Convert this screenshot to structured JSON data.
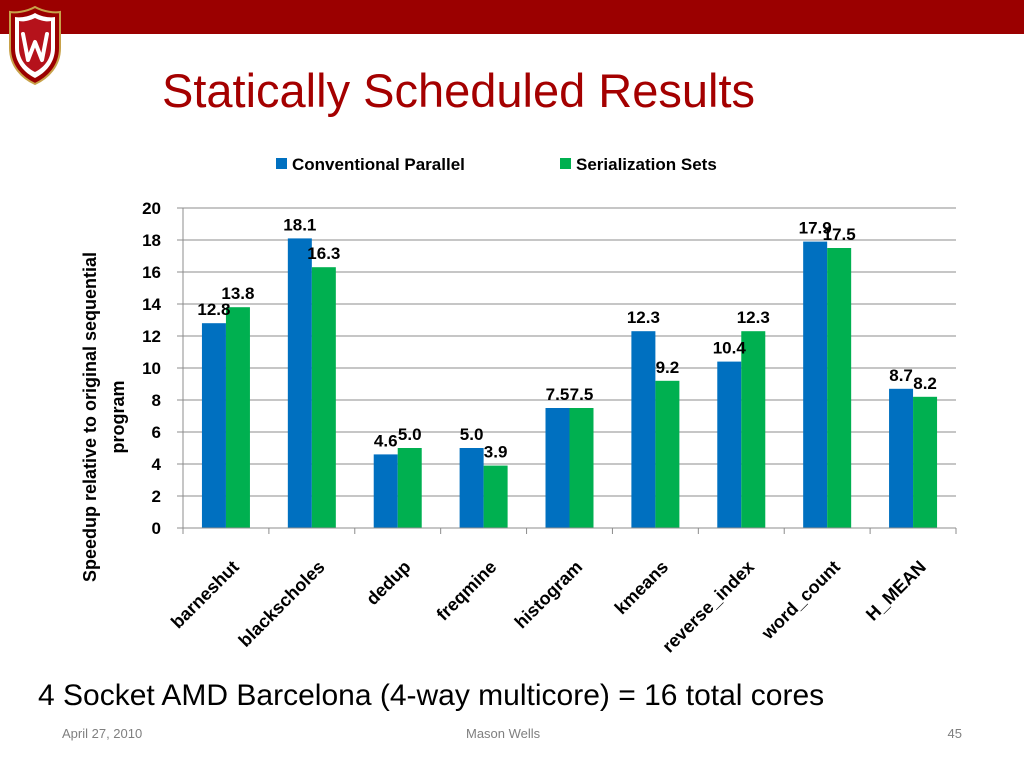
{
  "slide": {
    "title": "Statically Scheduled Results",
    "subtitle": "4 Socket AMD Barcelona (4-way multicore) = 16 total cores",
    "footer_date": "April 27, 2010",
    "footer_author": "Mason Wells",
    "page_number": "45"
  },
  "colors": {
    "top_bar": "#9b0000",
    "title": "#a40000",
    "crest_shield": "#b5121b",
    "crest_outline": "#c8a24a",
    "conventional_parallel": "#0070c0",
    "serialization_sets": "#00b050"
  },
  "icons": {
    "logo": "wisconsin-crest-icon"
  },
  "chart_data": {
    "type": "bar",
    "title": "",
    "xlabel": "",
    "ylabel": "Speedup relative to original sequential program",
    "ylabel_lines": [
      "Speedup relative to original sequential",
      "program"
    ],
    "categories": [
      "barneshut",
      "blackscholes",
      "dedup",
      "freqmine",
      "histogram",
      "kmeans",
      "reverse_index",
      "word_count",
      "H_MEAN"
    ],
    "series": [
      {
        "name": "Conventional Parallel",
        "values": [
          12.8,
          18.1,
          4.6,
          5.0,
          7.5,
          12.3,
          10.4,
          17.9,
          8.7
        ],
        "labels": [
          "12.8",
          "18.1",
          "4.6",
          "5.0",
          "7.5",
          "12.3",
          "10.4",
          "17.9",
          "8.7"
        ]
      },
      {
        "name": "Serialization Sets",
        "values": [
          13.8,
          16.3,
          5.0,
          3.9,
          7.5,
          9.2,
          12.3,
          17.5,
          8.2
        ],
        "labels": [
          "13.8",
          "16.3",
          "5.0",
          "3.9",
          "7.5",
          "9.2",
          "12.3",
          "17.5",
          "8.2"
        ]
      }
    ],
    "ylim": [
      0,
      20
    ],
    "yticks": [
      "0",
      "2",
      "4",
      "6",
      "8",
      "10",
      "12",
      "14",
      "16",
      "18",
      "20"
    ],
    "grid": true,
    "legend_position": "top"
  }
}
